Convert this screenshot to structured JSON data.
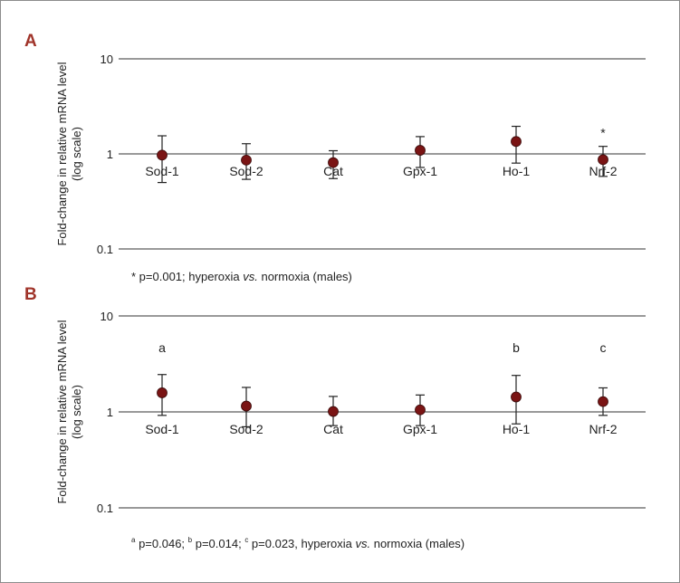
{
  "colors": {
    "panel_letter": "#a0342a",
    "marker": "#7a1414",
    "axis": "#333333"
  },
  "chart_data": [
    {
      "type": "scatter",
      "panel": "A",
      "scale": "log",
      "ylabel_line1": "Fold-change in relative mRNA level",
      "ylabel_line2": "(log scale)",
      "ylim": [
        0.1,
        10
      ],
      "yticks": [
        "10",
        "1",
        "0.1"
      ],
      "categories": [
        "Sod-1",
        "Sod-2",
        "Cat",
        "Gpx-1",
        "Ho-1",
        "Nrf-2"
      ],
      "values": [
        0.97,
        0.86,
        0.81,
        1.09,
        1.35,
        0.87
      ],
      "err_high": [
        1.55,
        1.28,
        1.08,
        1.52,
        1.95,
        1.2
      ],
      "err_low": [
        0.5,
        0.54,
        0.55,
        0.72,
        0.8,
        0.58
      ],
      "annotations": [
        "",
        "",
        "",
        "",
        "",
        "*"
      ],
      "footnote": "* p=0.001; hyperoxia vs. normoxia (males)",
      "grid": false
    },
    {
      "type": "scatter",
      "panel": "B",
      "scale": "log",
      "ylabel_line1": "Fold-change in relative mRNA level",
      "ylabel_line2": "(log scale)",
      "ylim": [
        0.1,
        10
      ],
      "yticks": [
        "10",
        "1",
        "0.1"
      ],
      "categories": [
        "Sod-1",
        "Sod-2",
        "Cat",
        "Gpx-1",
        "Ho-1",
        "Nrf-2"
      ],
      "values": [
        1.58,
        1.15,
        1.01,
        1.05,
        1.43,
        1.28
      ],
      "err_high": [
        2.45,
        1.8,
        1.45,
        1.5,
        2.4,
        1.78
      ],
      "err_low": [
        0.92,
        0.7,
        0.72,
        0.72,
        0.75,
        0.92
      ],
      "annotations": [
        "a",
        "",
        "",
        "",
        "b",
        "c"
      ],
      "footnote": "a p=0.046; b p=0.014; c p=0.023, hyperoxia vs. normoxia (males)",
      "grid": false
    }
  ],
  "footnotes": {
    "A": {
      "pre": "* p=0.001; hyperoxia ",
      "vs": "vs.",
      "post": " normoxia (males)"
    },
    "B": {
      "s1": "a",
      "t1": " p=0.046; ",
      "s2": "b",
      "t2": " p=0.014; ",
      "s3": "c",
      "t3": " p=0.023, hyperoxia ",
      "vs": "vs.",
      "post": " normoxia (males)"
    }
  }
}
